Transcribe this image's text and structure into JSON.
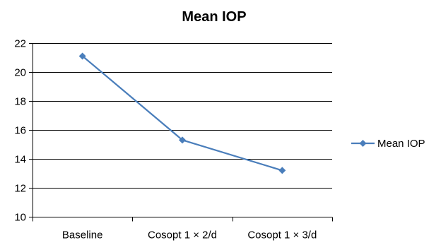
{
  "chart_data": {
    "type": "line",
    "title": "Mean IOP",
    "xlabel": "",
    "ylabel": "",
    "categories": [
      "Baseline",
      "Cosopt 1 × 2/d",
      "Cosopt 1 × 3/d"
    ],
    "series": [
      {
        "name": "Mean IOP",
        "values": [
          21.1,
          15.3,
          13.2
        ],
        "color": "#4A7EBB",
        "marker": "diamond"
      }
    ],
    "ylim": [
      10,
      22
    ],
    "yticks": [
      "10",
      "12",
      "14",
      "16",
      "18",
      "20",
      "22"
    ],
    "grid": true,
    "legend_position": "right"
  }
}
